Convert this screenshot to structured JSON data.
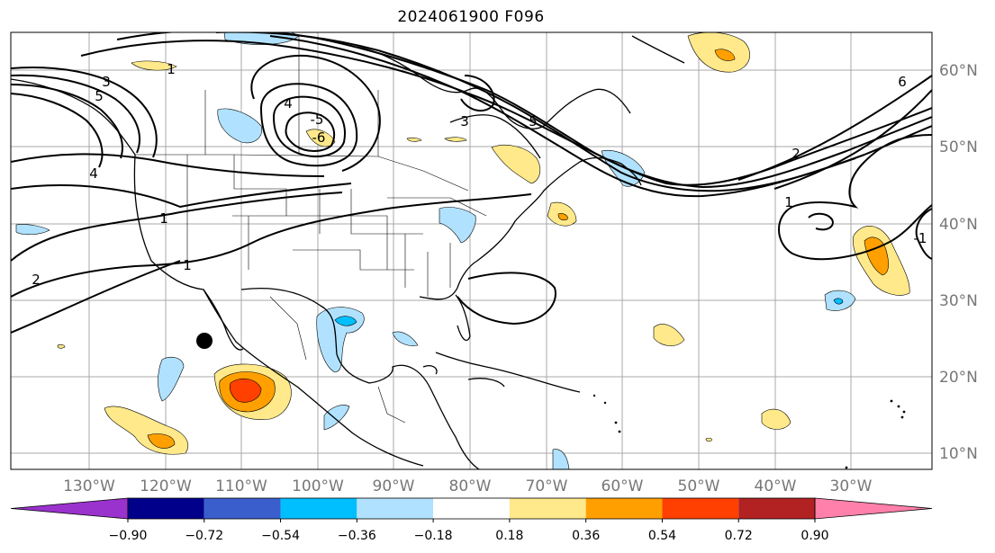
{
  "title": "2024061900 F096",
  "map": {
    "lon_labels": [
      "130°W",
      "120°W",
      "110°W",
      "100°W",
      "90°W",
      "80°W",
      "70°W",
      "60°W",
      "50°W",
      "40°W",
      "30°W"
    ],
    "lat_labels": [
      "60°N",
      "50°N",
      "40°N",
      "30°N",
      "20°N",
      "10°N"
    ],
    "contour_labels": [
      "3",
      "5",
      "4",
      "1",
      "4",
      "-5",
      "-6",
      "3",
      "5",
      "6",
      "2",
      "1",
      "1",
      "2",
      "1",
      "-1"
    ]
  },
  "colorbar": {
    "ticks": [
      "−0.90",
      "−0.72",
      "−0.54",
      "−0.36",
      "−0.18",
      "0.18",
      "0.36",
      "0.54",
      "0.72",
      "0.90"
    ],
    "colors": [
      "#9a32cd",
      "#00008b",
      "#3a5fcd",
      "#00bfff",
      "#b0e2ff",
      "#ffffff",
      "#ffe98a",
      "#ffa000",
      "#ff4000",
      "#b22222",
      "#ff80aa"
    ]
  }
}
